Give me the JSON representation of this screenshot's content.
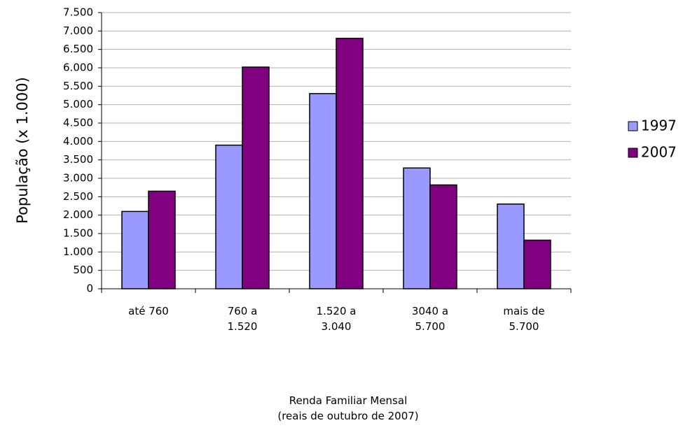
{
  "chart_data": {
    "type": "bar",
    "categories": [
      "até 760",
      "760 a\n1.520",
      "1.520 a\n3.040",
      "3040 a\n5.700",
      "mais de\n5.700"
    ],
    "series": [
      {
        "name": "1997",
        "color": "#9999ff",
        "values": [
          2100,
          3900,
          5300,
          3280,
          2300
        ]
      },
      {
        "name": "2007",
        "color": "#800080",
        "values": [
          2650,
          6020,
          6800,
          2820,
          1320
        ]
      }
    ],
    "ylabel": "População (x 1.000)",
    "xlabel": "Renda Familiar Mensal\n(reais de outubro de 2007)",
    "ylim": [
      0,
      7500
    ],
    "yticks": [
      0,
      500,
      {
        "value": 1000,
        "label": "1.000"
      },
      {
        "value": 1500,
        "label": "1.500"
      },
      {
        "value": 2000,
        "label": "2.000"
      },
      {
        "value": 2500,
        "label": "2.500"
      },
      {
        "value": 3000,
        "label": "3.000"
      },
      {
        "value": 3500,
        "label": "3.500"
      },
      {
        "value": 4000,
        "label": "4.000"
      },
      {
        "value": 4500,
        "label": "4.500"
      },
      {
        "value": 5000,
        "label": "5.000"
      },
      {
        "value": 5500,
        "label": "5.500"
      },
      {
        "value": 6000,
        "label": "6.000"
      },
      {
        "value": 6500,
        "label": "6.500"
      },
      {
        "value": 7000,
        "label": "7.000"
      },
      {
        "value": 7500,
        "label": "7.500"
      }
    ],
    "grid": true,
    "legend": "right"
  }
}
